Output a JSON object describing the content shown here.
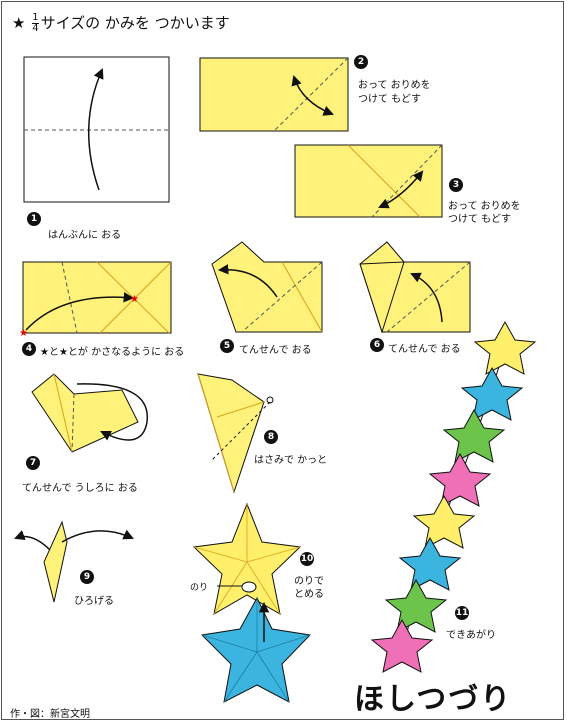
{
  "header": {
    "star": "★",
    "frac_num": "1",
    "frac_den": "4",
    "text": "サイズの かみを つかいます"
  },
  "steps": [
    {
      "n": "1",
      "line1": "はんぶんに おる",
      "line2": ""
    },
    {
      "n": "2",
      "line1": "おって おりめを",
      "line2": "つけて もどす"
    },
    {
      "n": "3",
      "line1": "おって おりめを",
      "line2": "つけて もどす"
    },
    {
      "n": "4",
      "line1": "★と★とが かさなるように おる",
      "line2": ""
    },
    {
      "n": "5",
      "line1": "てんせんで おる",
      "line2": ""
    },
    {
      "n": "6",
      "line1": "てんせんで おる",
      "line2": ""
    },
    {
      "n": "7",
      "line1": "てんせんで うしろに おる",
      "line2": ""
    },
    {
      "n": "8",
      "line1": "はさみで かっと",
      "line2": ""
    },
    {
      "n": "9",
      "line1": "ひろげる",
      "line2": ""
    },
    {
      "n": "10",
      "line1": "のりで",
      "line2": "とめる"
    },
    {
      "n": "11",
      "line1": "できあがり",
      "line2": ""
    }
  ],
  "glue_label": "のり",
  "final_title": "ほしつづり",
  "credit": "作・図：新宮文明",
  "colors": {
    "paper": "#fff27a",
    "blue": "#3bb4e0",
    "green": "#6cc44a",
    "pink": "#f070b8",
    "yellow": "#ffef6a"
  }
}
